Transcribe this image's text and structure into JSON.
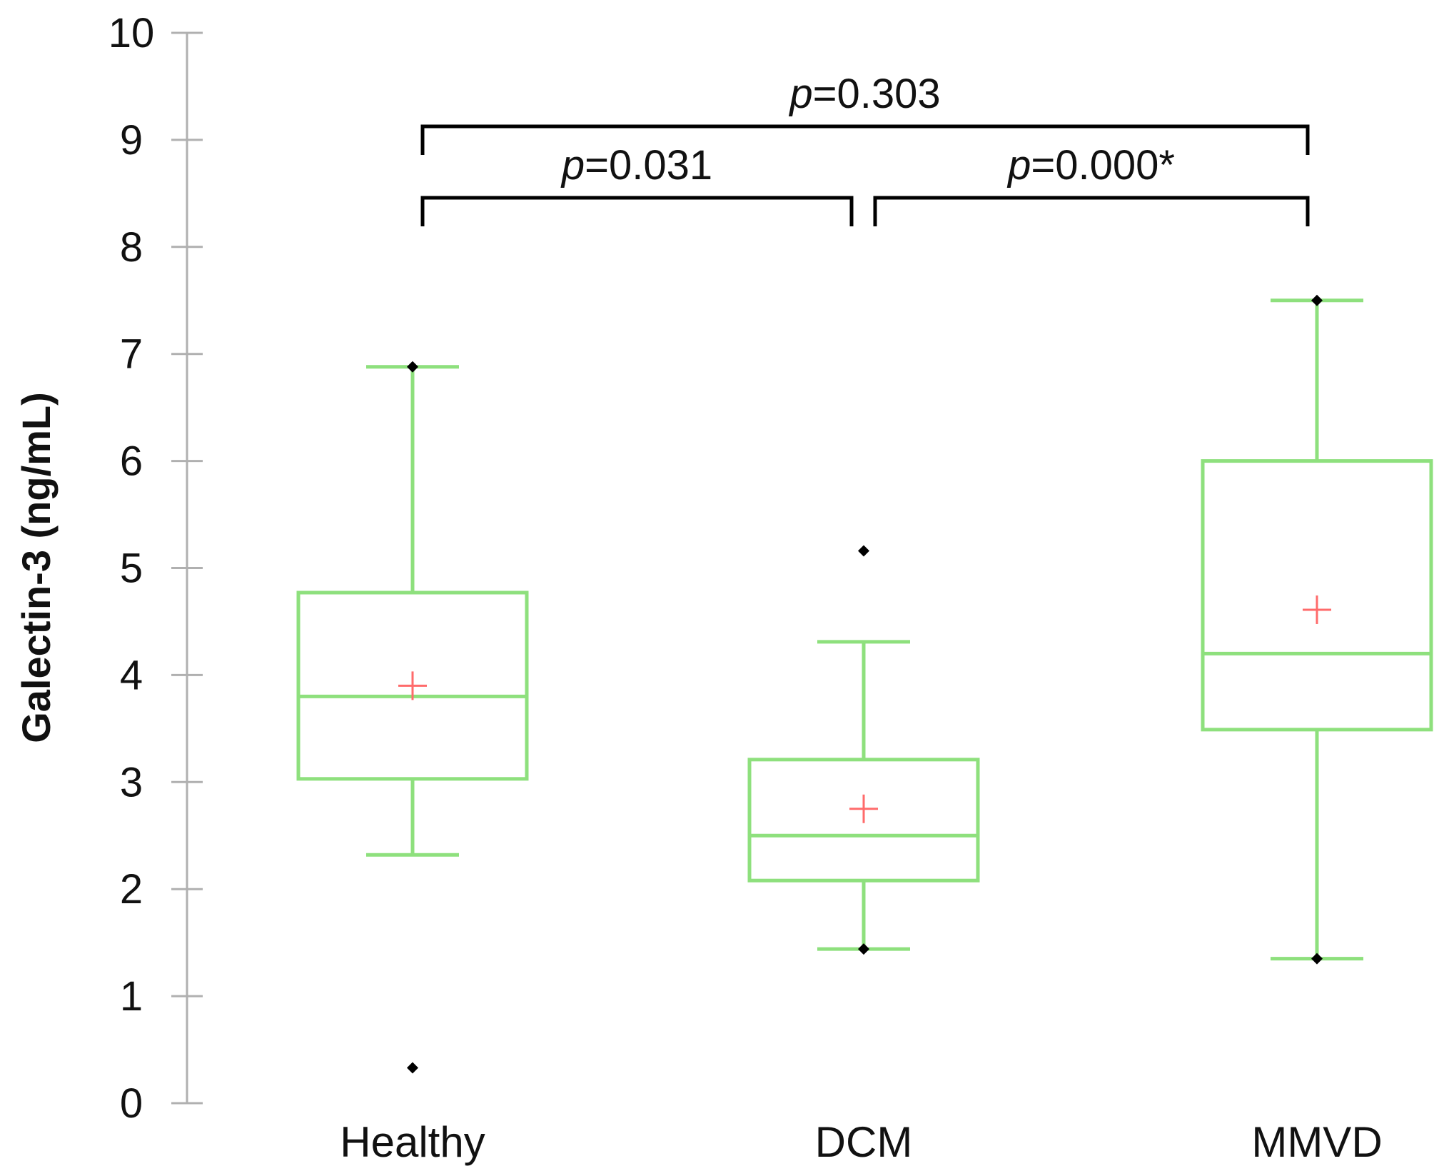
{
  "chart_data": {
    "type": "box",
    "title": "",
    "xlabel": "",
    "ylabel": "Galectin-3 (ng/mL)",
    "ylim": [
      0,
      10
    ],
    "yticks": [
      0,
      1,
      2,
      3,
      4,
      5,
      6,
      7,
      8,
      9,
      10
    ],
    "grid": false,
    "categories": [
      "Healthy",
      "DCM",
      "MMVD"
    ],
    "boxes": [
      {
        "name": "Healthy",
        "whisker_low": 2.32,
        "q1": 3.03,
        "median": 3.8,
        "q3": 4.77,
        "whisker_high": 6.88,
        "mean": 3.9,
        "points": [
          6.88,
          0.33
        ]
      },
      {
        "name": "DCM",
        "whisker_low": 1.44,
        "q1": 2.08,
        "median": 2.5,
        "q3": 3.21,
        "whisker_high": 4.31,
        "mean": 2.75,
        "points": [
          5.16,
          1.44
        ]
      },
      {
        "name": "MMVD",
        "whisker_low": 1.35,
        "q1": 3.49,
        "median": 4.2,
        "q3": 6.0,
        "whisker_high": 7.5,
        "mean": 4.61,
        "points": [
          7.5,
          1.35
        ]
      }
    ],
    "comparisons": [
      {
        "from": "Healthy",
        "to": "DCM",
        "p_prefix": "p",
        "p_value": "=0.031",
        "level": 1
      },
      {
        "from": "DCM",
        "to": "MMVD",
        "p_prefix": "p",
        "p_value": "=0.000*",
        "level": 1
      },
      {
        "from": "Healthy",
        "to": "MMVD",
        "p_prefix": "p",
        "p_value": "=0.303",
        "level": 2
      }
    ],
    "colors": {
      "box": "#8ee07d",
      "mean_marker": "#ff6b6b",
      "points": "#000000",
      "axis": "#b0b0b0",
      "bracket": "#000000"
    }
  }
}
